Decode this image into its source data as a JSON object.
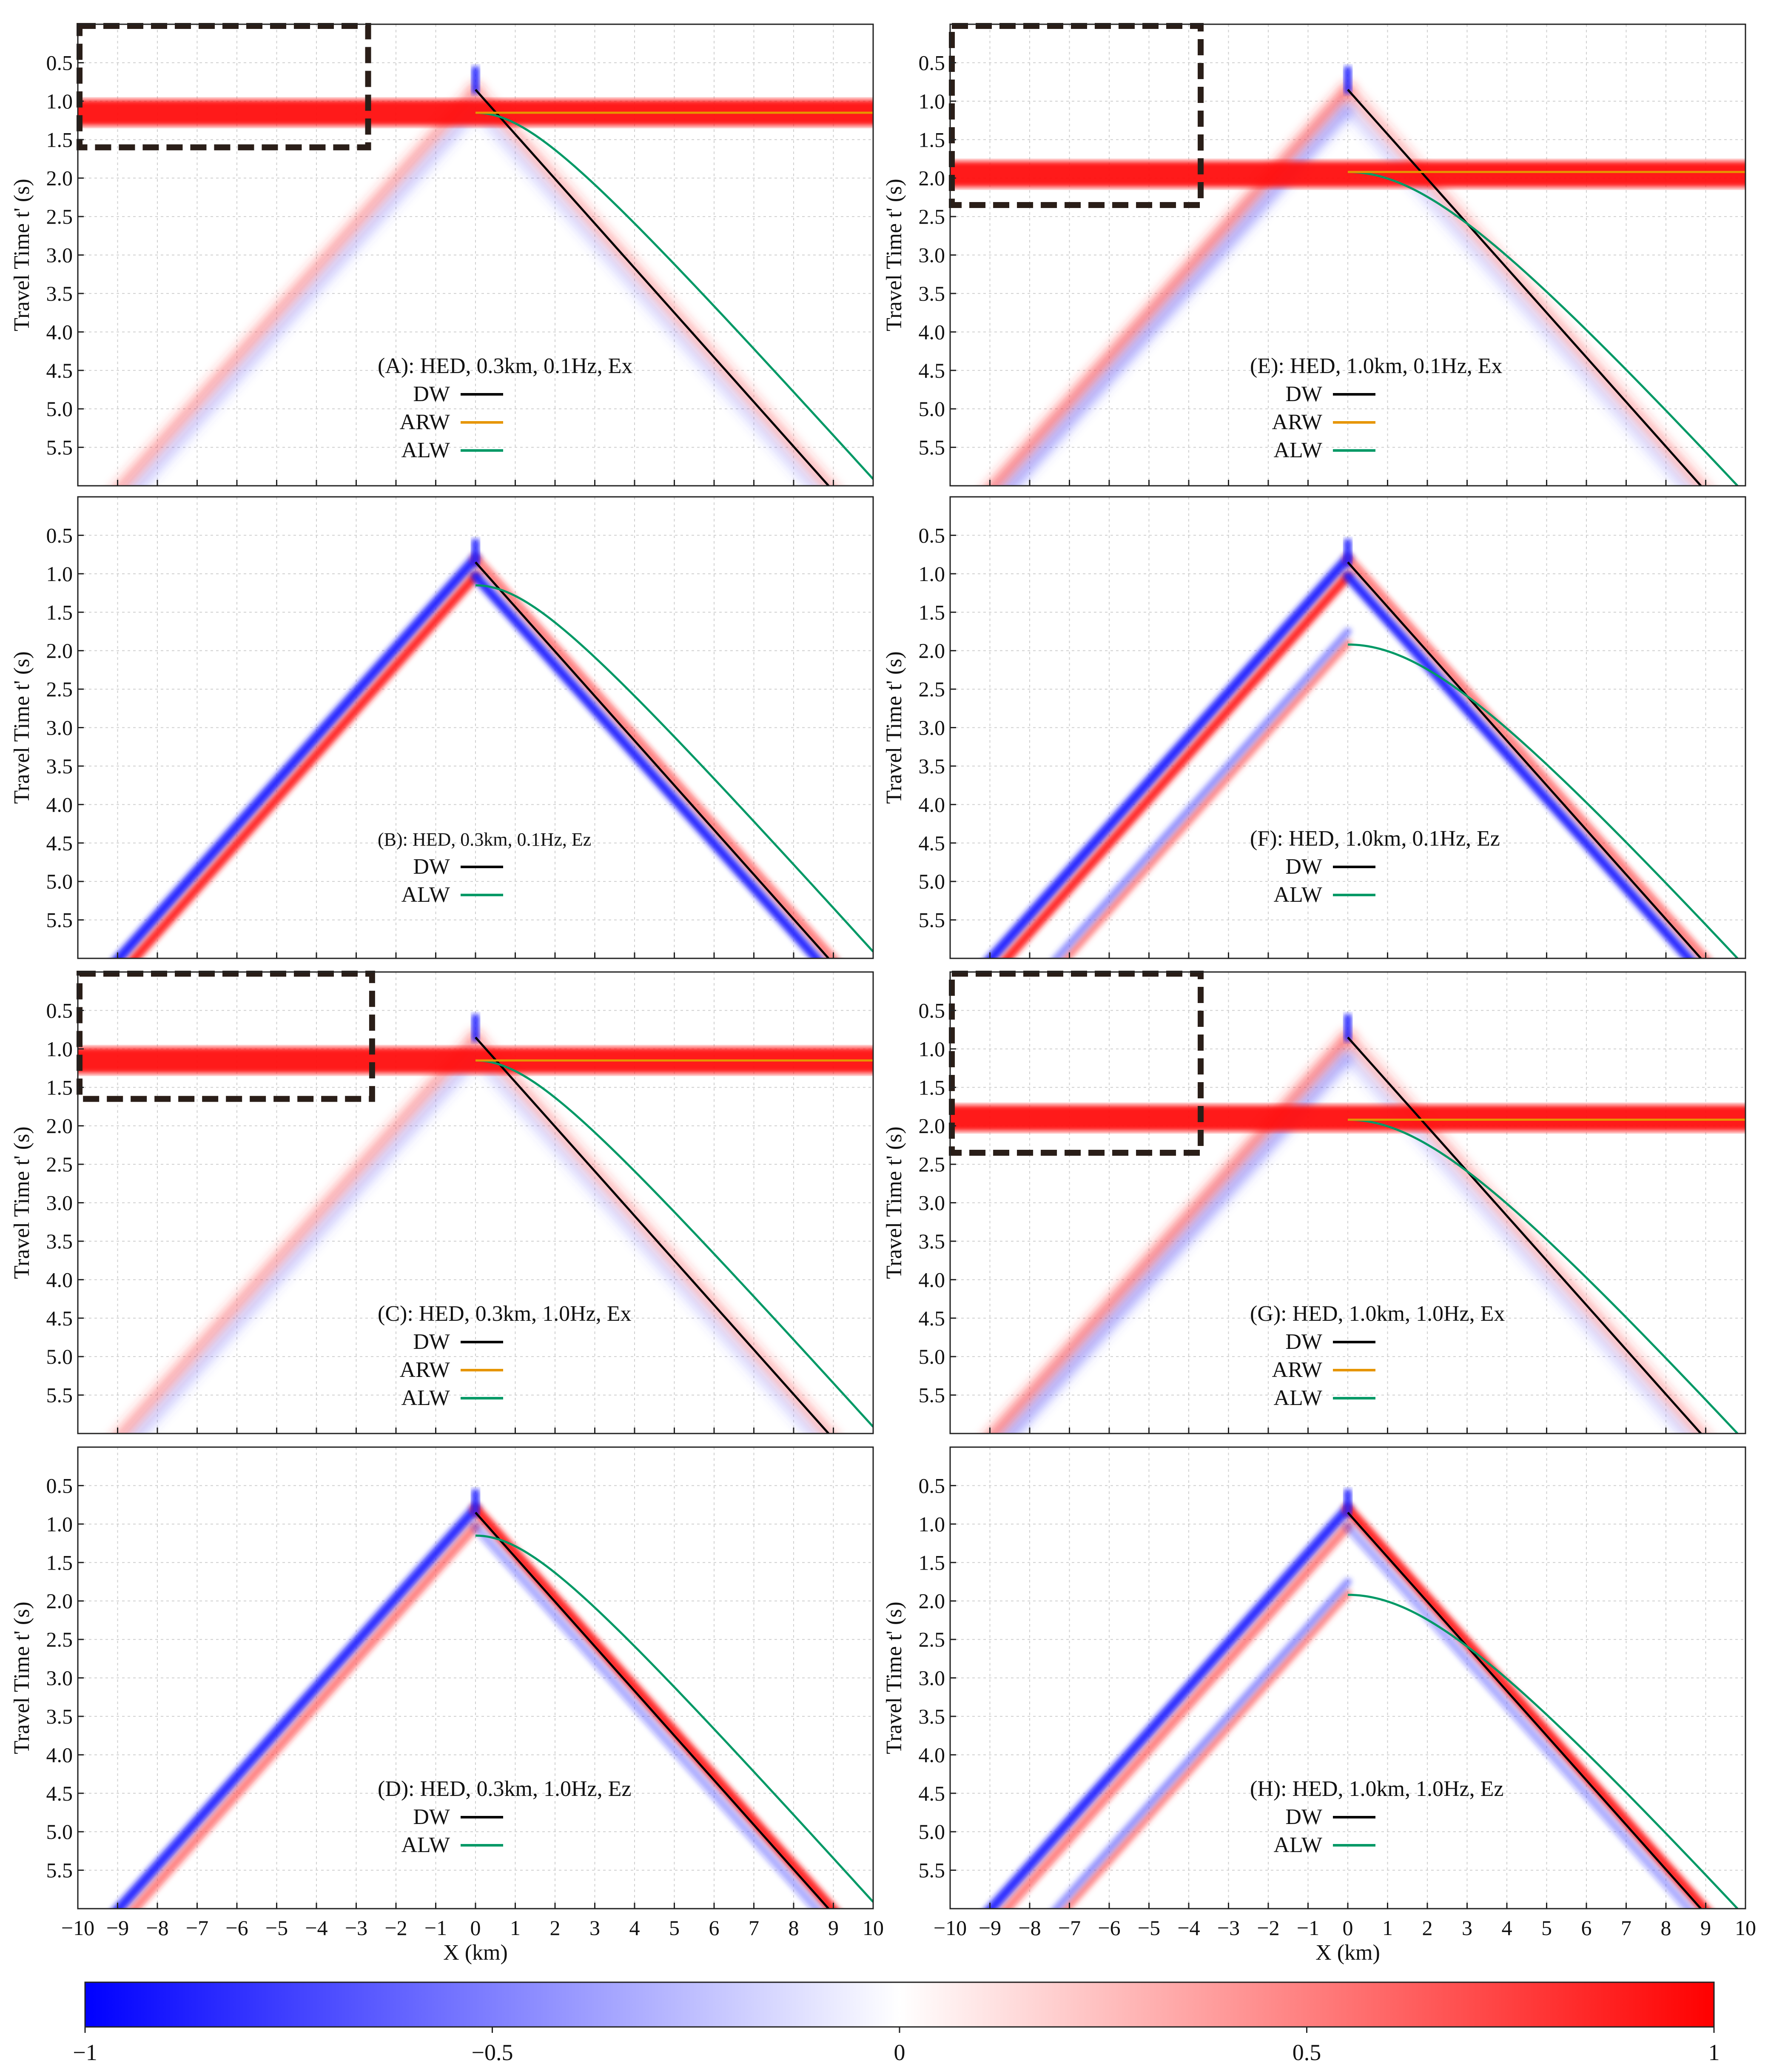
{
  "figure": {
    "colorbar": {
      "ticks": [
        "−1",
        "−0.5",
        "0",
        "0.5",
        "1"
      ],
      "tick_values": [
        -1,
        -0.5,
        0,
        0.5,
        1
      ],
      "neg_color": "#0000ff",
      "zero_color": "#ffffff",
      "pos_color": "#ff0000"
    },
    "shared_x_label": "X (km)",
    "shared_y_label": "Travel Time t' (s)",
    "line_colors": {
      "DW": "#000000",
      "ARW": "#e69500",
      "ALW": "#009966"
    }
  },
  "chart_data": [
    {
      "id": "A",
      "type": "heatmap",
      "title": "(A): HED, 0.3km, 0.1Hz, Ex",
      "component": "Ex",
      "depth_km": 0.3,
      "freq_hz": 0.1,
      "xlabel": "X (km)",
      "ylabel": "Travel Time t' (s)",
      "xlim": [
        -10,
        10
      ],
      "ylim": [
        6.0,
        0.0
      ],
      "xticks": [
        "−10",
        "−9",
        "−8",
        "−7",
        "−6",
        "−5",
        "−4",
        "−3",
        "−2",
        "−1",
        "0",
        "1",
        "2",
        "3",
        "4",
        "5",
        "6",
        "7",
        "8",
        "9",
        "10"
      ],
      "yticks": [
        "0.5",
        "1.0",
        "1.5",
        "2.0",
        "2.5",
        "3.0",
        "3.5",
        "4.0",
        "4.5",
        "5.0",
        "5.5"
      ],
      "legend": [
        "DW",
        "ARW",
        "ALW"
      ],
      "curves": {
        "DW_t0": 0.85,
        "ARW_t": 1.15,
        "ALW_t0": 1.15,
        "slowness_s_per_km": 0.58
      },
      "features": {
        "horizontal_band_t": 1.15,
        "cone_pos": "blue",
        "cone_neg": "red",
        "dashed_box": {
          "x": [
            -10,
            -2.7
          ],
          "t": [
            0.0,
            1.6
          ]
        }
      }
    },
    {
      "id": "B",
      "type": "heatmap",
      "title": "(B): HED, 0.3km, 0.1Hz, Ez",
      "component": "Ez",
      "depth_km": 0.3,
      "freq_hz": 0.1,
      "xlabel": "X (km)",
      "ylabel": "Travel Time t' (s)",
      "xlim": [
        -10,
        10
      ],
      "ylim": [
        6.0,
        0.0
      ],
      "xticks": [
        "−10",
        "−9",
        "−8",
        "−7",
        "−6",
        "−5",
        "−4",
        "−3",
        "−2",
        "−1",
        "0",
        "1",
        "2",
        "3",
        "4",
        "5",
        "6",
        "7",
        "8",
        "9",
        "10"
      ],
      "yticks": [
        "0.5",
        "1.0",
        "1.5",
        "2.0",
        "2.5",
        "3.0",
        "3.5",
        "4.0",
        "4.5",
        "5.0",
        "5.5"
      ],
      "legend": [
        "DW",
        "ALW"
      ],
      "curves": {
        "DW_t0": 0.85,
        "ALW_t0": 1.15,
        "slowness_s_per_km": 0.58
      },
      "features": {
        "cone_pos": "blue",
        "cone_neg": "red"
      }
    },
    {
      "id": "C",
      "type": "heatmap",
      "title": "(C): HED, 0.3km, 1.0Hz, Ex",
      "component": "Ex",
      "depth_km": 0.3,
      "freq_hz": 1.0,
      "xlabel": "X (km)",
      "ylabel": "Travel Time t' (s)",
      "xlim": [
        -10,
        10
      ],
      "ylim": [
        6.0,
        0.0
      ],
      "xticks": [
        "−10",
        "−9",
        "−8",
        "−7",
        "−6",
        "−5",
        "−4",
        "−3",
        "−2",
        "−1",
        "0",
        "1",
        "2",
        "3",
        "4",
        "5",
        "6",
        "7",
        "8",
        "9",
        "10"
      ],
      "yticks": [
        "0.5",
        "1.0",
        "1.5",
        "2.0",
        "2.5",
        "3.0",
        "3.5",
        "4.0",
        "4.5",
        "5.0",
        "5.5"
      ],
      "legend": [
        "DW",
        "ARW",
        "ALW"
      ],
      "curves": {
        "DW_t0": 0.85,
        "ARW_t": 1.15,
        "ALW_t0": 1.15,
        "slowness_s_per_km": 0.58
      },
      "features": {
        "horizontal_band_t": 1.15,
        "dashed_box": {
          "x": [
            -10,
            -2.6
          ],
          "t": [
            0.0,
            1.65
          ]
        }
      }
    },
    {
      "id": "D",
      "type": "heatmap",
      "title": "(D): HED, 0.3km, 1.0Hz, Ez",
      "component": "Ez",
      "depth_km": 0.3,
      "freq_hz": 1.0,
      "xlabel": "X (km)",
      "ylabel": "Travel Time t' (s)",
      "xlim": [
        -10,
        10
      ],
      "ylim": [
        6.0,
        0.0
      ],
      "xticks": [
        "−10",
        "−9",
        "−8",
        "−7",
        "−6",
        "−5",
        "−4",
        "−3",
        "−2",
        "−1",
        "0",
        "1",
        "2",
        "3",
        "4",
        "5",
        "6",
        "7",
        "8",
        "9",
        "10"
      ],
      "yticks": [
        "0.5",
        "1.0",
        "1.5",
        "2.0",
        "2.5",
        "3.0",
        "3.5",
        "4.0",
        "4.5",
        "5.0",
        "5.5"
      ],
      "legend": [
        "DW",
        "ALW"
      ],
      "curves": {
        "DW_t0": 0.85,
        "ALW_t0": 1.15,
        "slowness_s_per_km": 0.58
      },
      "features": {
        "cone_pos": "blue",
        "cone_neg": "red"
      }
    },
    {
      "id": "E",
      "type": "heatmap",
      "title": "(E): HED, 1.0km, 0.1Hz, Ex",
      "component": "Ex",
      "depth_km": 1.0,
      "freq_hz": 0.1,
      "xlabel": "X (km)",
      "ylabel": "Travel Time t' (s)",
      "xlim": [
        -10,
        10
      ],
      "ylim": [
        6.0,
        0.0
      ],
      "xticks": [
        "−10",
        "−9",
        "−8",
        "−7",
        "−6",
        "−5",
        "−4",
        "−3",
        "−2",
        "−1",
        "0",
        "1",
        "2",
        "3",
        "4",
        "5",
        "6",
        "7",
        "8",
        "9",
        "10"
      ],
      "yticks": [
        "0.5",
        "1.0",
        "1.5",
        "2.0",
        "2.5",
        "3.0",
        "3.5",
        "4.0",
        "4.5",
        "5.0",
        "5.5"
      ],
      "legend": [
        "DW",
        "ARW",
        "ALW"
      ],
      "curves": {
        "DW_t0": 0.85,
        "ARW_t": 1.92,
        "ALW_t0": 1.92,
        "slowness_s_per_km": 0.58
      },
      "features": {
        "horizontal_band_t": 1.95,
        "dashed_box": {
          "x": [
            -10,
            -3.7
          ],
          "t": [
            0.0,
            2.35
          ]
        }
      }
    },
    {
      "id": "F",
      "type": "heatmap",
      "title": "(F): HED, 1.0km, 0.1Hz, Ez",
      "component": "Ez",
      "depth_km": 1.0,
      "freq_hz": 0.1,
      "xlabel": "X (km)",
      "ylabel": "Travel Time t' (s)",
      "xlim": [
        -10,
        10
      ],
      "ylim": [
        6.0,
        0.0
      ],
      "xticks": [
        "−10",
        "−9",
        "−8",
        "−7",
        "−6",
        "−5",
        "−4",
        "−3",
        "−2",
        "−1",
        "0",
        "1",
        "2",
        "3",
        "4",
        "5",
        "6",
        "7",
        "8",
        "9",
        "10"
      ],
      "yticks": [
        "0.5",
        "1.0",
        "1.5",
        "2.0",
        "2.5",
        "3.0",
        "3.5",
        "4.0",
        "4.5",
        "5.0",
        "5.5"
      ],
      "legend": [
        "DW",
        "ALW"
      ],
      "curves": {
        "DW_t0": 0.85,
        "ALW_t0": 1.92,
        "slowness_s_per_km": 0.58
      },
      "features": {
        "cone_pos": "blue",
        "cone_neg": "red"
      }
    },
    {
      "id": "G",
      "type": "heatmap",
      "title": "(G): HED, 1.0km, 1.0Hz, Ex",
      "component": "Ex",
      "depth_km": 1.0,
      "freq_hz": 1.0,
      "xlabel": "X (km)",
      "ylabel": "Travel Time t' (s)",
      "xlim": [
        -10,
        10
      ],
      "ylim": [
        6.0,
        0.0
      ],
      "xticks": [
        "−10",
        "−9",
        "−8",
        "−7",
        "−6",
        "−5",
        "−4",
        "−3",
        "−2",
        "−1",
        "0",
        "1",
        "2",
        "3",
        "4",
        "5",
        "6",
        "7",
        "8",
        "9",
        "10"
      ],
      "yticks": [
        "0.5",
        "1.0",
        "1.5",
        "2.0",
        "2.5",
        "3.0",
        "3.5",
        "4.0",
        "4.5",
        "5.0",
        "5.5"
      ],
      "legend": [
        "DW",
        "ARW",
        "ALW"
      ],
      "curves": {
        "DW_t0": 0.85,
        "ARW_t": 1.92,
        "ALW_t0": 1.92,
        "slowness_s_per_km": 0.58
      },
      "features": {
        "horizontal_band_t": 1.9,
        "dashed_box": {
          "x": [
            -10,
            -3.7
          ],
          "t": [
            0.0,
            2.35
          ]
        }
      }
    },
    {
      "id": "H",
      "type": "heatmap",
      "title": "(H): HED, 1.0km, 1.0Hz, Ez",
      "component": "Ez",
      "depth_km": 1.0,
      "freq_hz": 1.0,
      "xlabel": "X (km)",
      "ylabel": "Travel Time t' (s)",
      "xlim": [
        -10,
        10
      ],
      "ylim": [
        6.0,
        0.0
      ],
      "xticks": [
        "−10",
        "−9",
        "−8",
        "−7",
        "−6",
        "−5",
        "−4",
        "−3",
        "−2",
        "−1",
        "0",
        "1",
        "2",
        "3",
        "4",
        "5",
        "6",
        "7",
        "8",
        "9",
        "10"
      ],
      "yticks": [
        "0.5",
        "1.0",
        "1.5",
        "2.0",
        "2.5",
        "3.0",
        "3.5",
        "4.0",
        "4.5",
        "5.0",
        "5.5"
      ],
      "legend": [
        "DW",
        "ALW"
      ],
      "curves": {
        "DW_t0": 0.85,
        "ALW_t0": 1.92,
        "slowness_s_per_km": 0.58
      },
      "features": {
        "cone_pos": "blue",
        "cone_neg": "red"
      }
    }
  ]
}
